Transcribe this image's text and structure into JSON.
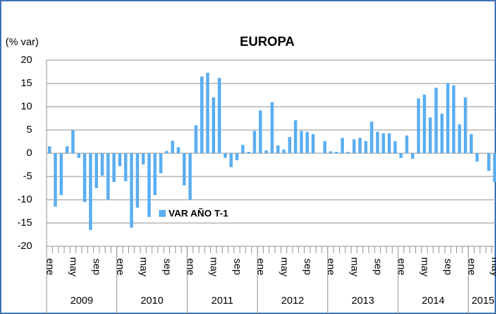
{
  "chart_data": {
    "type": "bar",
    "title": "EUROPA",
    "y_axis_label": "(% var)",
    "series": [
      {
        "name": "VAR AÑO T-1",
        "color": "#5aaef0",
        "values": [
          1.5,
          -11.5,
          -9,
          1.5,
          5,
          -1,
          -10.5,
          -16.5,
          -7.5,
          -4.8,
          -10,
          -6.2,
          -2.8,
          -6,
          -16,
          -11.7,
          -2.4,
          -13.7,
          -9,
          -4.3,
          0.5,
          2.7,
          1.3,
          -6.9,
          -10,
          6,
          16.5,
          17.3,
          12,
          16.2,
          -1,
          -3,
          -1.5,
          1.8,
          0.3,
          4.8,
          9.2,
          0.6,
          11,
          1.7,
          0.8,
          3.5,
          7.1,
          4.8,
          4.6,
          4.1,
          0.1,
          2.6,
          0.4,
          0.3,
          3.3,
          0.3,
          3,
          3.3,
          2.6,
          6.8,
          4.6,
          4.3,
          4.3,
          2.6,
          -1,
          3.8,
          -1.2,
          11.8,
          12.6,
          7.7,
          14.1,
          8.5,
          15.1,
          14.6,
          6.2,
          12,
          4.1,
          -1.8,
          0,
          -3.8,
          -6.2
        ]
      }
    ],
    "categories": [
      "ene",
      null,
      null,
      null,
      "may",
      null,
      null,
      null,
      "sep",
      null,
      null,
      null,
      "ene",
      null,
      null,
      null,
      "may",
      null,
      null,
      null,
      "sep",
      null,
      null,
      null,
      "ene",
      null,
      null,
      null,
      "may",
      null,
      null,
      null,
      "sep",
      null,
      null,
      null,
      "ene",
      null,
      null,
      null,
      "may",
      null,
      null,
      null,
      "sep",
      null,
      null,
      null,
      "ene",
      null,
      null,
      null,
      "may",
      null,
      null,
      null,
      "sep",
      null,
      null,
      null,
      "ene",
      null,
      null,
      null,
      "may",
      null,
      null,
      null,
      "sep",
      null,
      null,
      null,
      "ene",
      null,
      null,
      null,
      "may"
    ],
    "years": [
      "2009",
      "2010",
      "2011",
      "2012",
      "2013",
      "2014",
      "2015"
    ],
    "ylim": [
      -20,
      20
    ],
    "yticks": [
      -20,
      -15,
      -10,
      -5,
      0,
      5,
      10,
      15,
      20
    ],
    "grid": true
  }
}
